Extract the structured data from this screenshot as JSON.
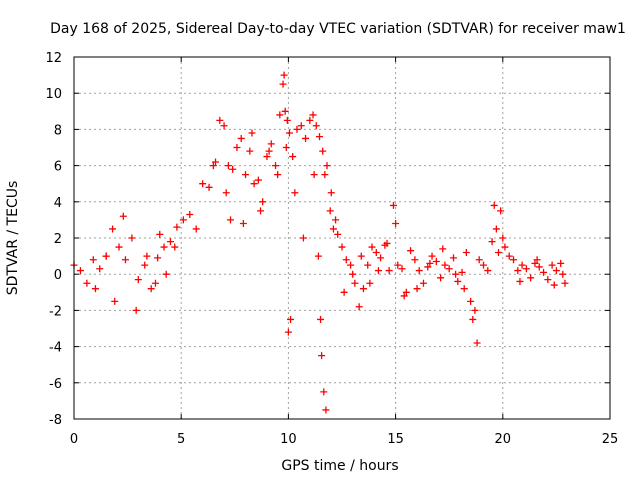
{
  "chart_data": {
    "type": "scatter",
    "title": "Day 168 of 2025, Sidereal Day-to-day VTEC variation (SDTVAR) for receiver maw1",
    "xlabel": "GPS time / hours",
    "ylabel": "SDTVAR / TECUs",
    "xlim": [
      0,
      25
    ],
    "ylim": [
      -8,
      12
    ],
    "x_ticks": [
      0,
      5,
      10,
      15,
      20,
      25
    ],
    "y_ticks": [
      -8,
      -6,
      -4,
      -2,
      0,
      2,
      4,
      6,
      8,
      10,
      12
    ],
    "grid": true,
    "marker": "+",
    "color": "#ff0000",
    "series": [
      {
        "name": "SDTVAR",
        "x": [
          0.0,
          0.3,
          0.6,
          0.9,
          1.2,
          1.5,
          1.8,
          2.1,
          2.4,
          2.7,
          3.0,
          3.3,
          3.6,
          3.9,
          4.2,
          4.5,
          4.8,
          5.1,
          5.4,
          5.7,
          6.0,
          6.3,
          6.6,
          6.8,
          7.0,
          7.2,
          7.4,
          7.6,
          7.8,
          8.0,
          8.2,
          8.4,
          8.6,
          8.8,
          9.0,
          9.2,
          9.4,
          9.6,
          9.75,
          9.85,
          9.95,
          10.05,
          10.2,
          10.4,
          10.6,
          10.8,
          11.0,
          11.15,
          11.3,
          11.45,
          11.6,
          11.7,
          11.8,
          11.95,
          12.1,
          12.3,
          12.5,
          12.7,
          12.9,
          13.1,
          13.3,
          13.5,
          13.7,
          13.9,
          14.1,
          14.3,
          14.5,
          14.7,
          14.9,
          15.1,
          15.3,
          15.5,
          15.7,
          15.9,
          16.1,
          16.3,
          16.5,
          16.7,
          16.9,
          17.1,
          17.3,
          17.5,
          17.7,
          17.9,
          18.1,
          18.3,
          18.5,
          18.7,
          18.9,
          19.1,
          19.3,
          19.5,
          19.7,
          19.9,
          20.1,
          20.3,
          20.5,
          20.7,
          20.9,
          21.1,
          21.3,
          21.5,
          21.7,
          21.9,
          22.1,
          22.3,
          22.5,
          22.7,
          22.9,
          1.0,
          1.5,
          1.9,
          2.3,
          2.9,
          3.4,
          3.8,
          4.0,
          4.3,
          4.7,
          6.5,
          7.1,
          7.3,
          7.9,
          8.3,
          8.7,
          9.1,
          9.5,
          9.8,
          9.9,
          10.0,
          10.1,
          10.3,
          10.7,
          11.2,
          11.4,
          11.5,
          11.55,
          11.65,
          11.75,
          12.0,
          12.2,
          12.6,
          13.0,
          13.4,
          13.8,
          14.2,
          14.6,
          15.0,
          15.4,
          16.0,
          16.6,
          17.2,
          17.8,
          18.2,
          18.6,
          18.8,
          19.6,
          19.8,
          20.0,
          20.8,
          21.6,
          22.4,
          22.8
        ],
        "y": [
          0.5,
          0.2,
          -0.5,
          0.8,
          0.3,
          1.0,
          2.5,
          1.5,
          0.8,
          2.0,
          -0.3,
          0.5,
          -0.8,
          0.9,
          1.5,
          1.8,
          2.6,
          3.0,
          3.3,
          2.5,
          5.0,
          4.8,
          6.2,
          8.5,
          8.2,
          6.0,
          5.8,
          7.0,
          7.5,
          5.5,
          6.8,
          5.0,
          5.2,
          4.0,
          6.5,
          7.2,
          6.0,
          8.8,
          10.5,
          9.0,
          8.5,
          7.8,
          6.5,
          8.0,
          8.2,
          7.5,
          8.5,
          8.8,
          8.2,
          7.6,
          6.8,
          5.5,
          6.0,
          3.5,
          2.5,
          2.2,
          1.5,
          0.8,
          0.5,
          -0.5,
          -1.8,
          -0.8,
          0.5,
          1.5,
          1.2,
          0.9,
          1.6,
          0.2,
          3.8,
          0.5,
          0.3,
          -1.0,
          1.3,
          0.8,
          0.2,
          -0.5,
          0.4,
          1.0,
          0.7,
          -0.2,
          0.5,
          0.3,
          0.9,
          -0.4,
          0.1,
          1.2,
          -1.5,
          -2.0,
          0.8,
          0.5,
          0.2,
          1.8,
          2.5,
          3.5,
          1.5,
          1.0,
          0.8,
          0.2,
          0.5,
          0.3,
          -0.2,
          0.6,
          0.4,
          0.1,
          -0.3,
          0.5,
          0.2,
          0.6,
          -0.5,
          -0.8,
          1.0,
          -1.5,
          3.2,
          -2.0,
          1.0,
          -0.5,
          2.2,
          0.0,
          1.5,
          6.0,
          4.5,
          3.0,
          2.8,
          7.8,
          3.5,
          6.8,
          5.5,
          11.0,
          7.0,
          -3.2,
          -2.5,
          4.5,
          2.0,
          5.5,
          1.0,
          -2.5,
          -4.5,
          -6.5,
          -7.5,
          4.5,
          3.0,
          -1.0,
          0.0,
          1.0,
          -0.5,
          0.2,
          1.7,
          2.8,
          -1.2,
          -0.8,
          0.6,
          1.4,
          0.0,
          -0.8,
          -2.5,
          -3.8,
          3.8,
          1.2,
          2.0,
          -0.4,
          0.8,
          -0.6,
          0.0
        ]
      }
    ]
  }
}
